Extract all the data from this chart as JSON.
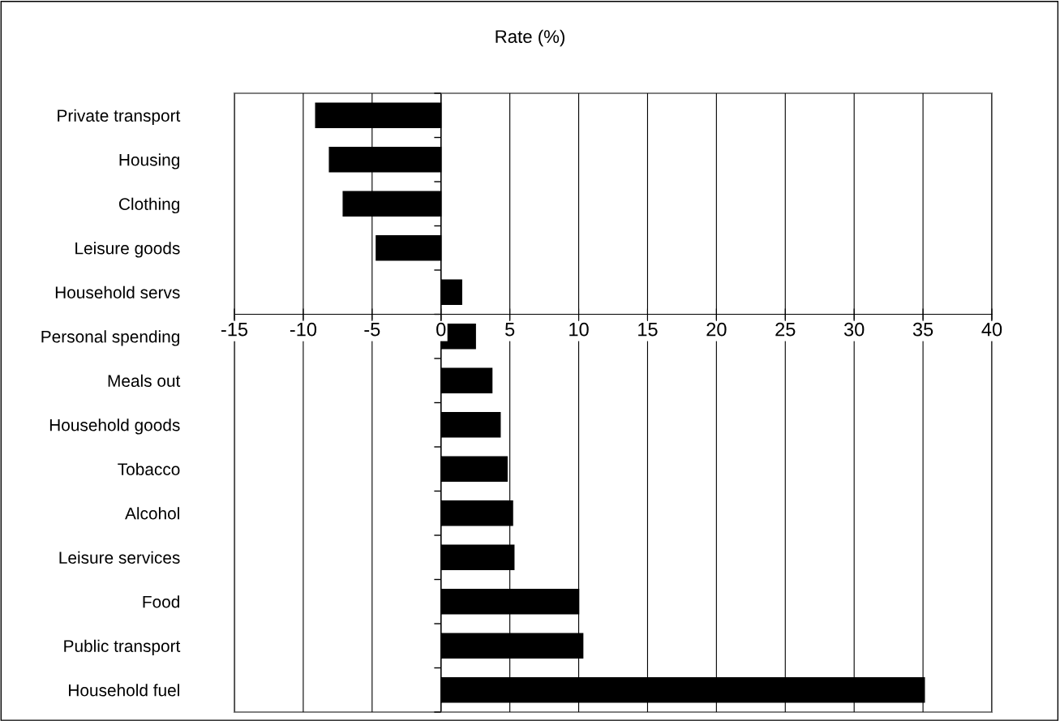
{
  "chart_data": {
    "type": "bar",
    "orientation": "horizontal",
    "title": "Rate (%)",
    "categories": [
      "Private transport",
      "Housing",
      "Clothing",
      "Leisure goods",
      "Household servs",
      "Personal spending",
      "Meals out",
      "Household goods",
      "Tobacco",
      "Alcohol",
      "Leisure services",
      "Food",
      "Public transport",
      "Household fuel"
    ],
    "values": [
      -9.1,
      -8.1,
      -7.1,
      -4.7,
      1.5,
      2.5,
      3.7,
      4.3,
      4.8,
      5.2,
      5.3,
      10.0,
      10.3,
      35.1
    ],
    "color": "#000000",
    "xlim": [
      -15,
      40
    ],
    "xticks": [
      -15,
      -10,
      -5,
      0,
      5,
      10,
      15,
      20,
      25,
      30,
      35,
      40
    ],
    "grid": "x"
  }
}
